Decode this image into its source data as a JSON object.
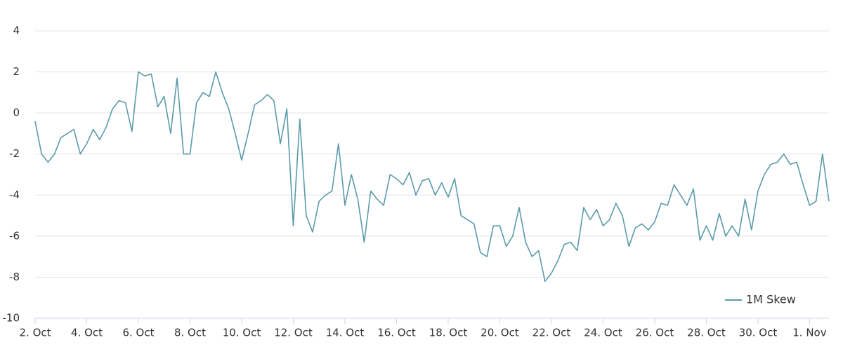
{
  "chart_data": {
    "type": "line",
    "x": [
      0,
      0.25,
      0.5,
      0.75,
      1,
      1.25,
      1.5,
      1.75,
      2,
      2.25,
      2.5,
      2.75,
      3,
      3.25,
      3.5,
      3.75,
      4,
      4.25,
      4.5,
      4.75,
      5,
      5.25,
      5.5,
      5.75,
      6,
      6.25,
      6.5,
      6.75,
      7,
      7.25,
      7.5,
      7.75,
      8,
      8.25,
      8.5,
      8.75,
      9,
      9.25,
      9.5,
      9.75,
      10,
      10.25,
      10.5,
      10.75,
      11,
      11.25,
      11.5,
      11.75,
      12,
      12.25,
      12.5,
      12.75,
      13,
      13.25,
      13.5,
      13.75,
      14,
      14.25,
      14.5,
      14.75,
      15,
      15.25,
      15.5,
      15.75,
      16,
      16.25,
      16.5,
      16.75,
      17,
      17.25,
      17.5,
      17.75,
      18,
      18.25,
      18.5,
      18.75,
      19,
      19.25,
      19.5,
      19.75,
      20,
      20.25,
      20.5,
      20.75,
      21,
      21.25,
      21.5,
      21.75,
      22,
      22.25,
      22.5,
      22.75,
      23,
      23.25,
      23.5,
      23.75,
      24,
      24.25,
      24.5,
      24.75,
      25,
      25.25,
      25.5,
      25.75,
      26,
      26.25,
      26.5,
      26.75,
      27,
      27.25,
      27.5,
      27.75,
      28,
      28.25,
      28.5,
      28.75,
      29,
      29.25,
      29.5,
      29.75,
      30,
      30.25,
      30.5,
      30.75
    ],
    "series": [
      {
        "name": "1M Skew",
        "color": "#5b9bab",
        "values": [
          -0.4,
          -2.0,
          -2.4,
          -2.0,
          -1.2,
          -1.0,
          -0.8,
          -2.0,
          -1.5,
          -0.8,
          -1.3,
          -0.7,
          0.2,
          0.6,
          0.5,
          -0.9,
          2.0,
          1.8,
          1.9,
          0.3,
          0.8,
          -1.0,
          1.7,
          -2.0,
          -2.0,
          0.5,
          1.0,
          0.8,
          2.0,
          1.0,
          0.2,
          -1.0,
          -2.3,
          -1.0,
          0.4,
          0.6,
          0.9,
          0.6,
          -1.5,
          0.2,
          -5.5,
          -0.3,
          -5.0,
          -5.8,
          -4.3,
          -4.0,
          -3.8,
          -1.5,
          -4.5,
          -3.0,
          -4.2,
          -6.3,
          -3.8,
          -4.2,
          -4.5,
          -3.0,
          -3.2,
          -3.5,
          -2.9,
          -4.0,
          -3.3,
          -3.2,
          -4.0,
          -3.4,
          -4.1,
          -3.2,
          -5.0,
          -5.2,
          -5.4,
          -6.8,
          -7.0,
          -5.5,
          -5.5,
          -6.5,
          -6.0,
          -4.6,
          -6.3,
          -7.0,
          -6.7,
          -8.2,
          -7.8,
          -7.2,
          -6.4,
          -6.3,
          -6.7,
          -4.6,
          -5.2,
          -4.7,
          -5.5,
          -5.2,
          -4.4,
          -5.0,
          -6.5,
          -5.6,
          -5.4,
          -5.7,
          -5.3,
          -4.4,
          -4.5,
          -3.5,
          -4.0,
          -4.5,
          -3.7,
          -6.2,
          -5.5,
          -6.2,
          -4.9,
          -6.0,
          -5.5,
          -6.0,
          -4.2,
          -5.7,
          -3.8,
          -3.0,
          -2.5,
          -2.4,
          -2.0,
          -2.5,
          -2.4,
          -3.5,
          -4.5,
          -4.3,
          -2.0,
          -4.3
        ]
      }
    ],
    "xlim": [
      0,
      30.75
    ],
    "xticks": [
      {
        "value": 0,
        "label": "2. Oct"
      },
      {
        "value": 2,
        "label": "4. Oct"
      },
      {
        "value": 4,
        "label": "6. Oct"
      },
      {
        "value": 6,
        "label": "8. Oct"
      },
      {
        "value": 8,
        "label": "10. Oct"
      },
      {
        "value": 10,
        "label": "12. Oct"
      },
      {
        "value": 12,
        "label": "14. Oct"
      },
      {
        "value": 14,
        "label": "16. Oct"
      },
      {
        "value": 16,
        "label": "18. Oct"
      },
      {
        "value": 18,
        "label": "20. Oct"
      },
      {
        "value": 20,
        "label": "22. Oct"
      },
      {
        "value": 22,
        "label": "24. Oct"
      },
      {
        "value": 24,
        "label": "26. Oct"
      },
      {
        "value": 26,
        "label": "28. Oct"
      },
      {
        "value": 28,
        "label": "30. Oct"
      },
      {
        "value": 30,
        "label": "1. Nov"
      }
    ],
    "ylim": [
      -10,
      4
    ],
    "yticks": [
      -10,
      -8,
      -6,
      -4,
      -2,
      0,
      2,
      4
    ],
    "grid": true,
    "legend": "lower right"
  }
}
